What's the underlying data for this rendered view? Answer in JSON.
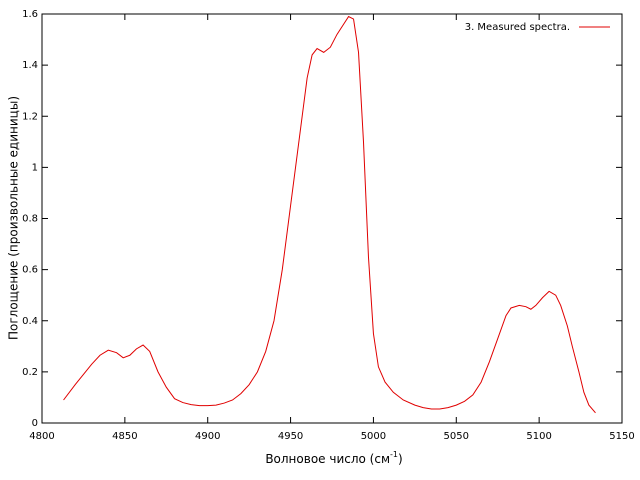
{
  "chart_data": {
    "type": "line",
    "x_label": [
      "Волновое число (см",
      "-1",
      ")"
    ],
    "y_label": "Поглощение (произвольные единицы)",
    "xlim": [
      4800,
      5150
    ],
    "xticks": [
      4800,
      4850,
      4900,
      4950,
      5000,
      5050,
      5100,
      5150
    ],
    "ylim": [
      0,
      1.6
    ],
    "yticks": [
      0,
      0.2,
      0.4,
      0.6,
      0.8,
      1,
      1.2,
      1.4,
      1.6
    ],
    "legend": "top-right",
    "series": [
      {
        "name": "3. Measured spectra.",
        "color": "#e00000",
        "x": [
          4813,
          4820,
          4825,
          4830,
          4835,
          4840,
          4845,
          4849,
          4853,
          4857,
          4861,
          4865,
          4870,
          4875,
          4880,
          4885,
          4890,
          4895,
          4900,
          4905,
          4910,
          4915,
          4920,
          4925,
          4930,
          4935,
          4940,
          4945,
          4950,
          4955,
          4960,
          4963,
          4966,
          4970,
          4974,
          4978,
          4982,
          4985,
          4988,
          4991,
          4994,
          4997,
          5000,
          5003,
          5007,
          5012,
          5018,
          5025,
          5030,
          5035,
          5040,
          5045,
          5050,
          5055,
          5060,
          5065,
          5070,
          5075,
          5080,
          5083,
          5088,
          5092,
          5095,
          5098,
          5102,
          5106,
          5110,
          5113,
          5117,
          5120,
          5124,
          5127,
          5130,
          5134
        ],
        "values": [
          0.09,
          0.15,
          0.19,
          0.23,
          0.265,
          0.285,
          0.275,
          0.255,
          0.265,
          0.29,
          0.305,
          0.28,
          0.2,
          0.14,
          0.095,
          0.08,
          0.072,
          0.068,
          0.068,
          0.07,
          0.078,
          0.09,
          0.115,
          0.15,
          0.2,
          0.28,
          0.4,
          0.6,
          0.85,
          1.1,
          1.35,
          1.44,
          1.465,
          1.45,
          1.47,
          1.52,
          1.56,
          1.59,
          1.58,
          1.45,
          1.1,
          0.65,
          0.35,
          0.22,
          0.16,
          0.12,
          0.09,
          0.07,
          0.06,
          0.055,
          0.055,
          0.06,
          0.07,
          0.085,
          0.11,
          0.16,
          0.24,
          0.33,
          0.42,
          0.45,
          0.46,
          0.455,
          0.445,
          0.46,
          0.49,
          0.515,
          0.5,
          0.46,
          0.38,
          0.3,
          0.2,
          0.12,
          0.07,
          0.04
        ]
      }
    ]
  }
}
